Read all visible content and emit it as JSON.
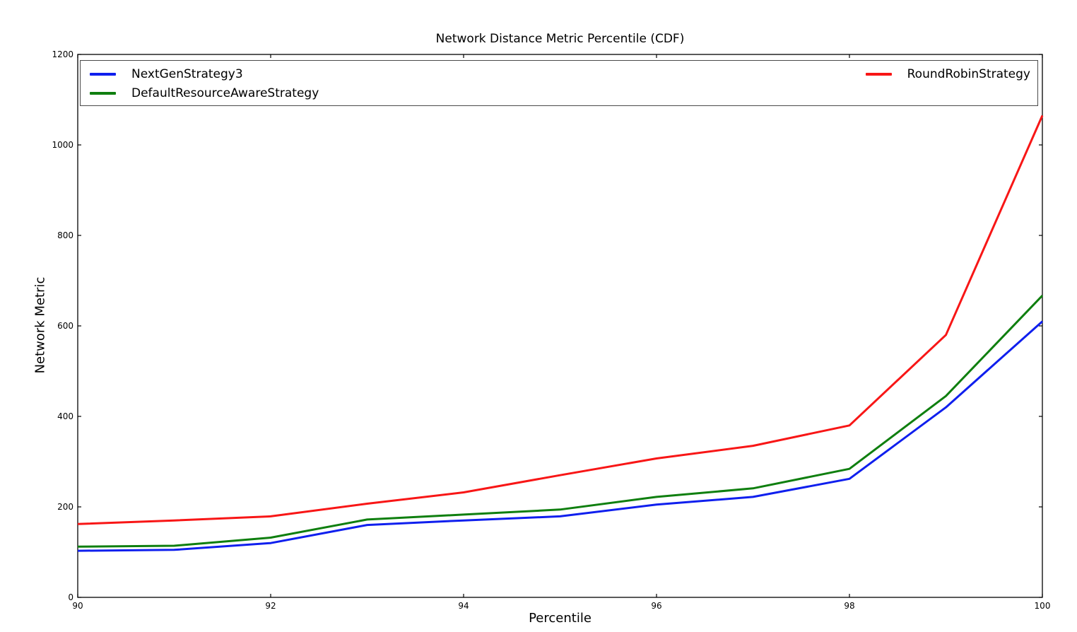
{
  "title": "Network Distance Metric Percentile (CDF)",
  "axes": {
    "xlabel": "Percentile",
    "ylabel": "Network Metric"
  },
  "chart_data": {
    "type": "line",
    "title": "Network Distance Metric Percentile (CDF)",
    "xlabel": "Percentile",
    "ylabel": "Network Metric",
    "x": [
      90,
      91,
      92,
      93,
      94,
      95,
      96,
      97,
      98,
      99,
      100
    ],
    "series": [
      {
        "name": "NextGenStrategy3",
        "color": "#0f1fee",
        "values": [
          103,
          105,
          120,
          160,
          170,
          179,
          205,
          222,
          262,
          420,
          610
        ]
      },
      {
        "name": "DefaultResourceAwareStrategy",
        "color": "#0f7f0f",
        "values": [
          112,
          114,
          132,
          172,
          183,
          194,
          222,
          241,
          284,
          445,
          667
        ]
      },
      {
        "name": "RoundRobinStrategy",
        "color": "#f81616",
        "values": [
          162,
          170,
          179,
          207,
          232,
          270,
          307,
          335,
          380,
          580,
          1065
        ]
      }
    ],
    "xlim": [
      90,
      100
    ],
    "ylim": [
      0,
      1200
    ],
    "xticks": [
      90,
      92,
      94,
      96,
      98,
      100
    ],
    "yticks": [
      0,
      200,
      400,
      600,
      800,
      1000,
      1200
    ],
    "grid": false,
    "legend": {
      "position": "top-inside-expanded",
      "columns": 2,
      "entries_in_first_column": 2
    },
    "line_width": 3,
    "frame_color": "#000000",
    "background_color": "#ffffff"
  }
}
